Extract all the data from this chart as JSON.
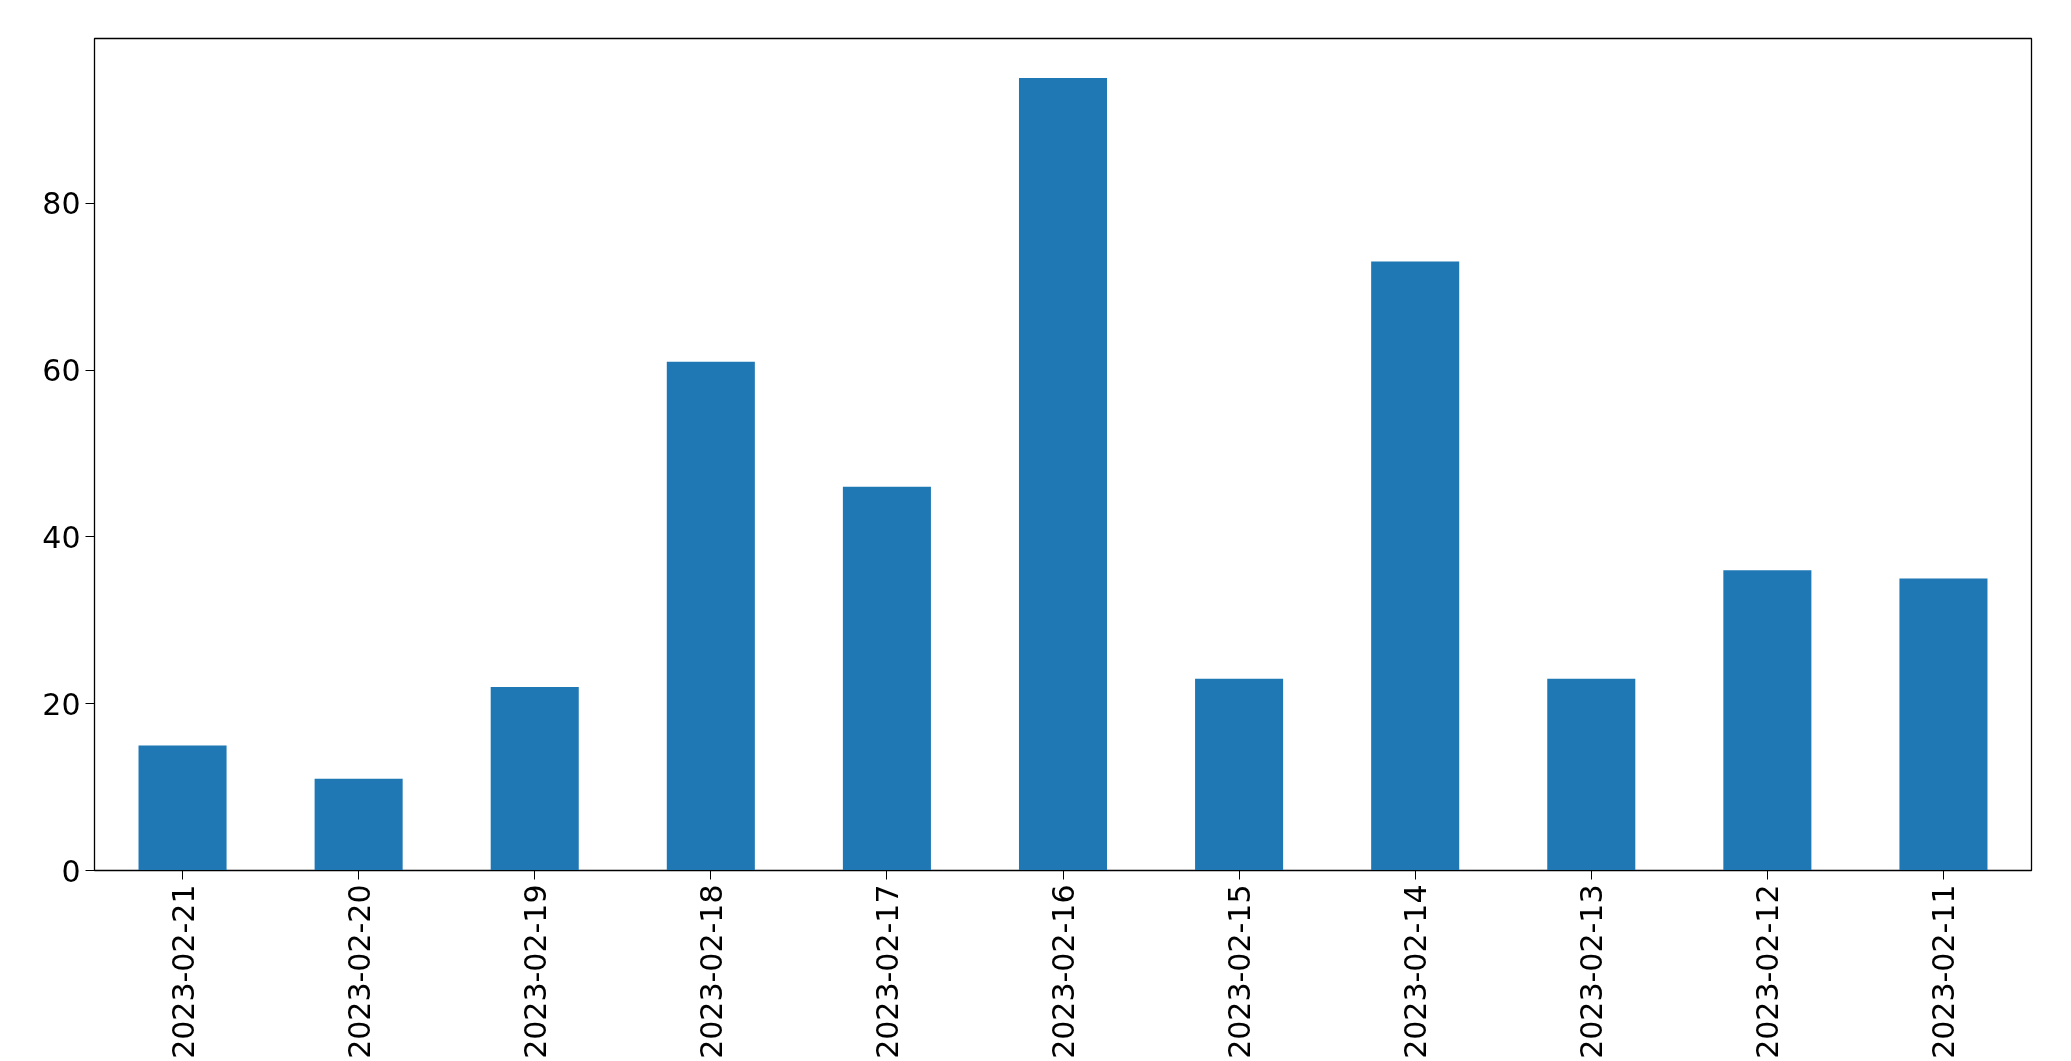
{
  "chart_data": {
    "type": "bar",
    "categories": [
      "2023-02-21",
      "2023-02-20",
      "2023-02-19",
      "2023-02-18",
      "2023-02-17",
      "2023-02-16",
      "2023-02-15",
      "2023-02-14",
      "2023-02-13",
      "2023-02-12",
      "2023-02-11"
    ],
    "values": [
      15,
      11,
      22,
      61,
      46,
      95,
      23,
      73,
      23,
      36,
      35
    ],
    "color": "#1f77b4",
    "ylim": [
      0,
      99.75
    ],
    "yticks": [
      0,
      20,
      40,
      60,
      80
    ]
  }
}
